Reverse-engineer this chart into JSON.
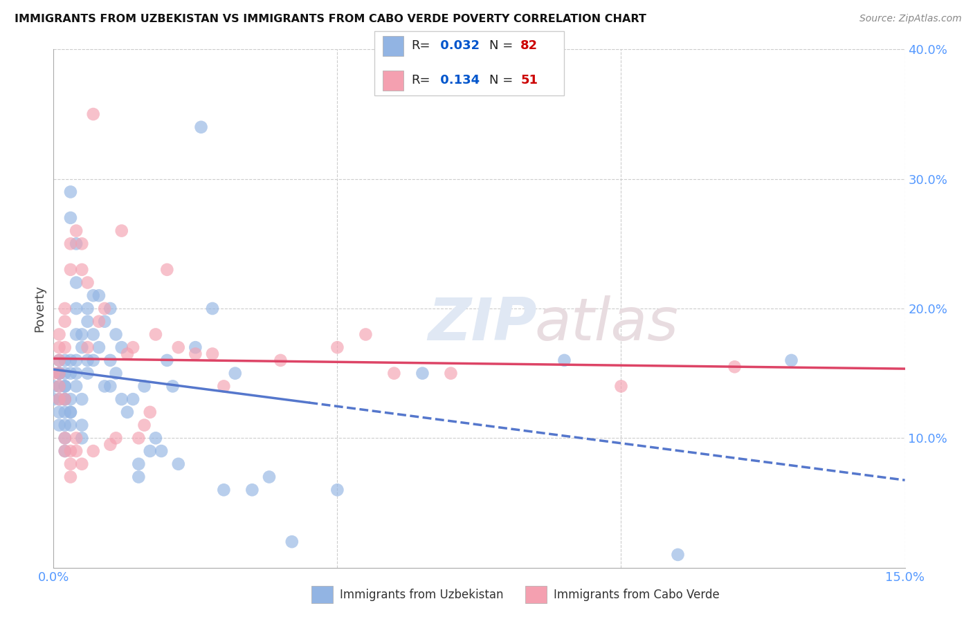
{
  "title": "IMMIGRANTS FROM UZBEKISTAN VS IMMIGRANTS FROM CABO VERDE POVERTY CORRELATION CHART",
  "source": "Source: ZipAtlas.com",
  "ylabel": "Poverty",
  "xlim": [
    0,
    0.15
  ],
  "ylim": [
    0,
    0.4
  ],
  "xticks": [
    0.0,
    0.05,
    0.1,
    0.15
  ],
  "xticklabels": [
    "0.0%",
    "",
    "",
    "15.0%"
  ],
  "yticks": [
    0.1,
    0.2,
    0.3,
    0.4
  ],
  "yticklabels": [
    "10.0%",
    "20.0%",
    "30.0%",
    "40.0%"
  ],
  "uzbekistan_R": 0.032,
  "uzbekistan_N": 82,
  "caboverde_R": 0.134,
  "caboverde_N": 51,
  "uzbekistan_color": "#92b4e3",
  "caboverde_color": "#f4a0b0",
  "trendline_uzbekistan_color": "#5577cc",
  "trendline_caboverde_color": "#dd4466",
  "axis_color": "#5599ff",
  "legend_R_color": "#0055cc",
  "legend_N_color": "#cc0000",
  "background_color": "#ffffff",
  "uzbekistan_x": [
    0.0,
    0.0,
    0.001,
    0.001,
    0.001,
    0.001,
    0.001,
    0.001,
    0.001,
    0.001,
    0.002,
    0.002,
    0.002,
    0.002,
    0.002,
    0.002,
    0.002,
    0.002,
    0.002,
    0.002,
    0.003,
    0.003,
    0.003,
    0.003,
    0.003,
    0.003,
    0.003,
    0.003,
    0.004,
    0.004,
    0.004,
    0.004,
    0.004,
    0.004,
    0.004,
    0.005,
    0.005,
    0.005,
    0.005,
    0.005,
    0.006,
    0.006,
    0.006,
    0.006,
    0.007,
    0.007,
    0.007,
    0.008,
    0.008,
    0.009,
    0.009,
    0.01,
    0.01,
    0.01,
    0.011,
    0.011,
    0.012,
    0.012,
    0.013,
    0.014,
    0.015,
    0.015,
    0.016,
    0.017,
    0.018,
    0.019,
    0.02,
    0.021,
    0.022,
    0.025,
    0.026,
    0.028,
    0.03,
    0.032,
    0.035,
    0.038,
    0.042,
    0.05,
    0.065,
    0.09,
    0.11,
    0.13
  ],
  "uzbekistan_y": [
    0.13,
    0.14,
    0.15,
    0.15,
    0.16,
    0.11,
    0.12,
    0.13,
    0.14,
    0.15,
    0.13,
    0.14,
    0.15,
    0.16,
    0.11,
    0.12,
    0.09,
    0.1,
    0.13,
    0.14,
    0.29,
    0.27,
    0.15,
    0.16,
    0.12,
    0.13,
    0.11,
    0.12,
    0.25,
    0.22,
    0.2,
    0.18,
    0.14,
    0.15,
    0.16,
    0.17,
    0.18,
    0.13,
    0.1,
    0.11,
    0.19,
    0.2,
    0.15,
    0.16,
    0.21,
    0.16,
    0.18,
    0.21,
    0.17,
    0.19,
    0.14,
    0.2,
    0.16,
    0.14,
    0.15,
    0.18,
    0.17,
    0.13,
    0.12,
    0.13,
    0.07,
    0.08,
    0.14,
    0.09,
    0.1,
    0.09,
    0.16,
    0.14,
    0.08,
    0.17,
    0.34,
    0.2,
    0.06,
    0.15,
    0.06,
    0.07,
    0.02,
    0.06,
    0.15,
    0.16,
    0.01,
    0.16
  ],
  "caboverde_x": [
    0.0,
    0.001,
    0.001,
    0.001,
    0.001,
    0.001,
    0.001,
    0.002,
    0.002,
    0.002,
    0.002,
    0.002,
    0.002,
    0.003,
    0.003,
    0.003,
    0.003,
    0.003,
    0.004,
    0.004,
    0.004,
    0.005,
    0.005,
    0.005,
    0.006,
    0.006,
    0.007,
    0.007,
    0.008,
    0.009,
    0.01,
    0.011,
    0.012,
    0.013,
    0.014,
    0.015,
    0.016,
    0.017,
    0.018,
    0.02,
    0.022,
    0.025,
    0.028,
    0.03,
    0.04,
    0.05,
    0.055,
    0.06,
    0.07,
    0.1,
    0.12
  ],
  "caboverde_y": [
    0.15,
    0.18,
    0.17,
    0.16,
    0.13,
    0.14,
    0.15,
    0.19,
    0.2,
    0.17,
    0.13,
    0.09,
    0.1,
    0.25,
    0.23,
    0.07,
    0.08,
    0.09,
    0.26,
    0.09,
    0.1,
    0.25,
    0.23,
    0.08,
    0.22,
    0.17,
    0.35,
    0.09,
    0.19,
    0.2,
    0.095,
    0.1,
    0.26,
    0.165,
    0.17,
    0.1,
    0.11,
    0.12,
    0.18,
    0.23,
    0.17,
    0.165,
    0.165,
    0.14,
    0.16,
    0.17,
    0.18,
    0.15,
    0.15,
    0.14,
    0.155
  ]
}
